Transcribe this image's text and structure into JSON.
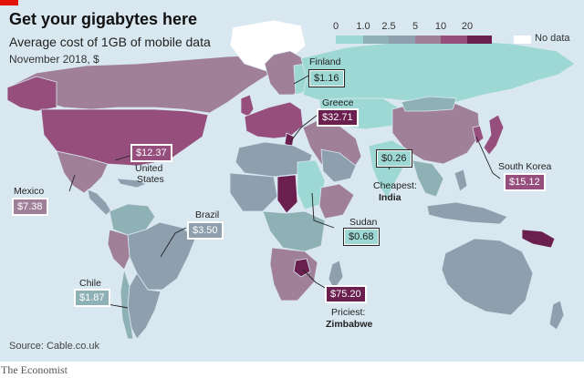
{
  "header": {
    "title": "Get your gigabytes here",
    "subtitle": "Average cost of 1GB of mobile data",
    "date": "November 2018, $"
  },
  "legend": {
    "ticks": [
      "0",
      "1.0",
      "2.5",
      "5",
      "10",
      "20"
    ],
    "nodata_label": "No data",
    "colors": [
      "#9ed8d4",
      "#8eb1b6",
      "#8e9fae",
      "#a07f99",
      "#964f7d",
      "#6b1f4f"
    ]
  },
  "callouts": {
    "finland": {
      "name": "Finland",
      "price": "$1.16"
    },
    "greece": {
      "name": "Greece",
      "price": "$32.71"
    },
    "india": {
      "name_line1": "Cheapest:",
      "name_line2": "India",
      "price": "$0.26"
    },
    "south_korea": {
      "name": "South Korea",
      "price": "$15.12"
    },
    "us": {
      "name_line1": "United",
      "name_line2": "States",
      "price": "$12.37"
    },
    "mexico": {
      "name": "Mexico",
      "price": "$7.38"
    },
    "brazil": {
      "name": "Brazil",
      "price": "$3.50"
    },
    "sudan": {
      "name": "Sudan",
      "price": "$0.68"
    },
    "chile": {
      "name": "Chile",
      "price": "$1.87"
    },
    "zimbabwe": {
      "name_line1": "Priciest:",
      "name_line2": "Zimbabwe",
      "price": "$75.20"
    }
  },
  "source": "Source: Cable.co.uk",
  "footer": "The Economist"
}
